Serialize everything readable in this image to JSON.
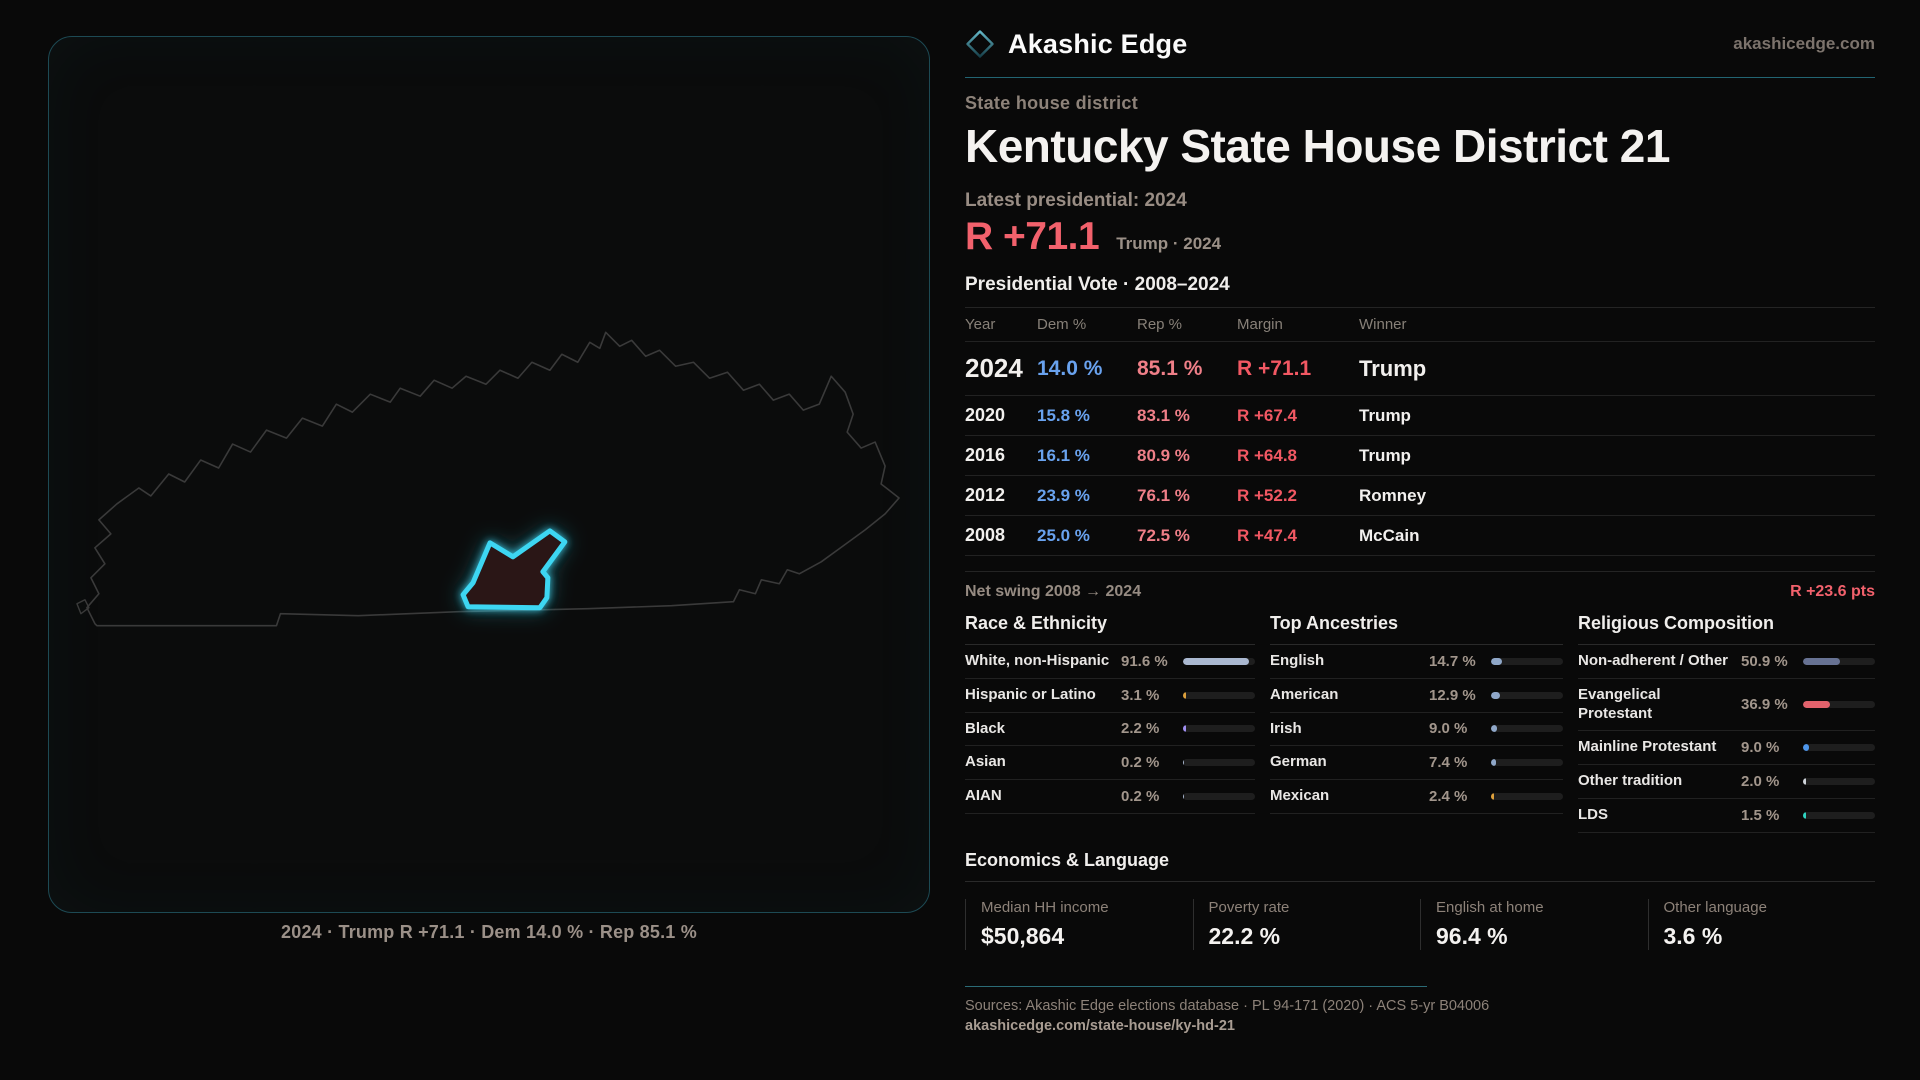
{
  "brand": {
    "name": "Akashic Edge",
    "site": "akashicedge.com"
  },
  "page": {
    "kicker": "State house district",
    "title": "Kentucky State House District 21"
  },
  "latest": {
    "label": "Latest presidential: 2024",
    "margin": "R +71.1",
    "context": "Trump · 2024"
  },
  "map": {
    "caption": "2024 · Trump R +71.1 · Dem 14.0 % · Rep 85.1 %"
  },
  "vote_table": {
    "title": "Presidential Vote · 2008–2024",
    "columns": [
      "Year",
      "Dem %",
      "Rep %",
      "Margin",
      "Winner"
    ],
    "rows": [
      {
        "year": "2024",
        "dem": "14.0 %",
        "rep": "85.1 %",
        "margin": "R +71.1",
        "winner": "Trump",
        "emphasis": true
      },
      {
        "year": "2020",
        "dem": "15.8 %",
        "rep": "83.1 %",
        "margin": "R +67.4",
        "winner": "Trump",
        "emphasis": false
      },
      {
        "year": "2016",
        "dem": "16.1 %",
        "rep": "80.9 %",
        "margin": "R +64.8",
        "winner": "Trump",
        "emphasis": false
      },
      {
        "year": "2012",
        "dem": "23.9 %",
        "rep": "76.1 %",
        "margin": "R +52.2",
        "winner": "Romney",
        "emphasis": false
      },
      {
        "year": "2008",
        "dem": "25.0 %",
        "rep": "72.5 %",
        "margin": "R +47.4",
        "winner": "McCain",
        "emphasis": false
      }
    ]
  },
  "net_swing": {
    "label": "Net swing 2008 → 2024",
    "value": "R +23.6 pts"
  },
  "demographics": [
    {
      "title": "Race & Ethnicity",
      "rows": [
        {
          "label": "White, non-Hispanic",
          "value": "91.6 %",
          "pct": 91.6,
          "color": "#aab8d0"
        },
        {
          "label": "Hispanic or Latino",
          "value": "3.1 %",
          "pct": 3.1,
          "color": "#dda03c"
        },
        {
          "label": "Black",
          "value": "2.2 %",
          "pct": 2.2,
          "color": "#a08ff2"
        },
        {
          "label": "Asian",
          "value": "0.2 %",
          "pct": 0.2,
          "color": "#aab8d0"
        },
        {
          "label": "AIAN",
          "value": "0.2 %",
          "pct": 0.2,
          "color": "#aab8d0"
        }
      ]
    },
    {
      "title": "Top Ancestries",
      "rows": [
        {
          "label": "English",
          "value": "14.7 %",
          "pct": 14.7,
          "color": "#8fa7c8"
        },
        {
          "label": "American",
          "value": "12.9 %",
          "pct": 12.9,
          "color": "#8fa7c8"
        },
        {
          "label": "Irish",
          "value": "9.0 %",
          "pct": 9.0,
          "color": "#8fa7c8"
        },
        {
          "label": "German",
          "value": "7.4 %",
          "pct": 7.4,
          "color": "#8fa7c8"
        },
        {
          "label": "Mexican",
          "value": "2.4 %",
          "pct": 2.4,
          "color": "#dda03c"
        }
      ]
    },
    {
      "title": "Religious Composition",
      "rows": [
        {
          "label": "Non-adherent / Other",
          "value": "50.9 %",
          "pct": 50.9,
          "color": "#677293"
        },
        {
          "label": "Evangelical Protestant",
          "value": "36.9 %",
          "pct": 36.9,
          "color": "#e2626c"
        },
        {
          "label": "Mainline Protestant",
          "value": "9.0 %",
          "pct": 9.0,
          "color": "#4e96ea"
        },
        {
          "label": "Other tradition",
          "value": "2.0 %",
          "pct": 2.0,
          "color": "#cfd4da"
        },
        {
          "label": "LDS",
          "value": "1.5 %",
          "pct": 1.5,
          "color": "#2ed3c1"
        }
      ]
    }
  ],
  "economics": {
    "title": "Economics & Language",
    "stats": [
      {
        "label": "Median HH income",
        "value": "$50,864"
      },
      {
        "label": "Poverty rate",
        "value": "22.2 %"
      },
      {
        "label": "English at home",
        "value": "96.4 %"
      },
      {
        "label": "Other language",
        "value": "3.6 %"
      }
    ]
  },
  "footer": {
    "sources": "Sources: Akashic Edge elections database · PL 94-171 (2020) · ACS 5-yr B04006",
    "permalink": "akashicedge.com/state-house/ky-hd-21"
  }
}
